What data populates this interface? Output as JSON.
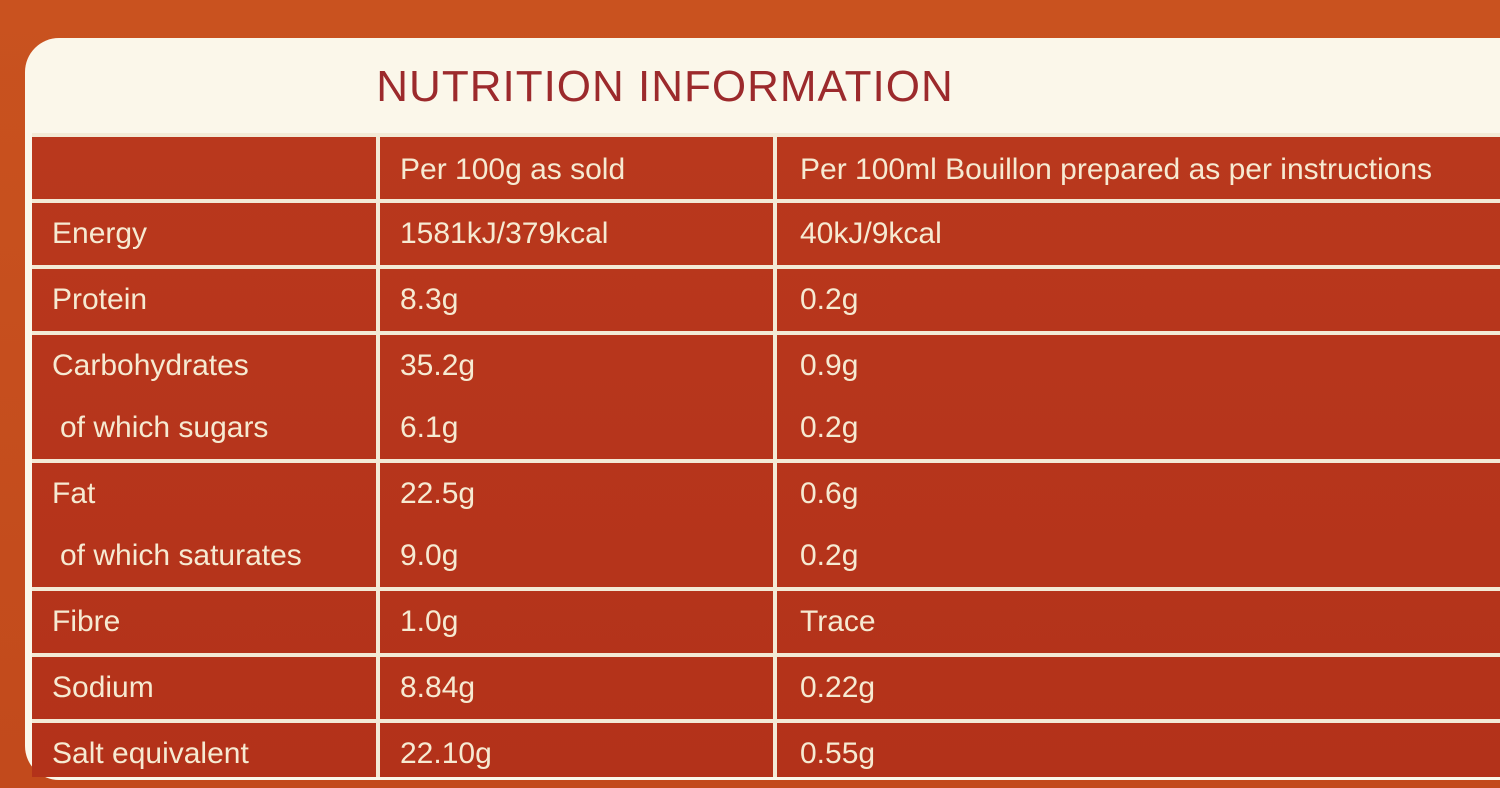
{
  "title": "NUTRITION INFORMATION",
  "table": {
    "columns": [
      "Per 100g as sold",
      "Per 100ml Bouillon prepared as per instructions"
    ],
    "groups": [
      [
        [
          "Energy",
          "1581kJ/379kcal",
          "40kJ/9kcal"
        ]
      ],
      [
        [
          "Protein",
          "8.3g",
          "0.2g"
        ]
      ],
      [
        [
          "Carbohydrates",
          "35.2g",
          "0.9g"
        ],
        [
          "of which sugars",
          "6.1g",
          "0.2g"
        ]
      ],
      [
        [
          "Fat",
          "22.5g",
          "0.6g"
        ],
        [
          "of which saturates",
          "9.0g",
          "0.2g"
        ]
      ],
      [
        [
          "Fibre",
          "1.0g",
          "Trace"
        ]
      ],
      [
        [
          "Sodium",
          "8.84g",
          "0.22g"
        ]
      ],
      [
        [
          "Salt equivalent",
          "22.10g",
          "0.55g"
        ]
      ]
    ]
  }
}
